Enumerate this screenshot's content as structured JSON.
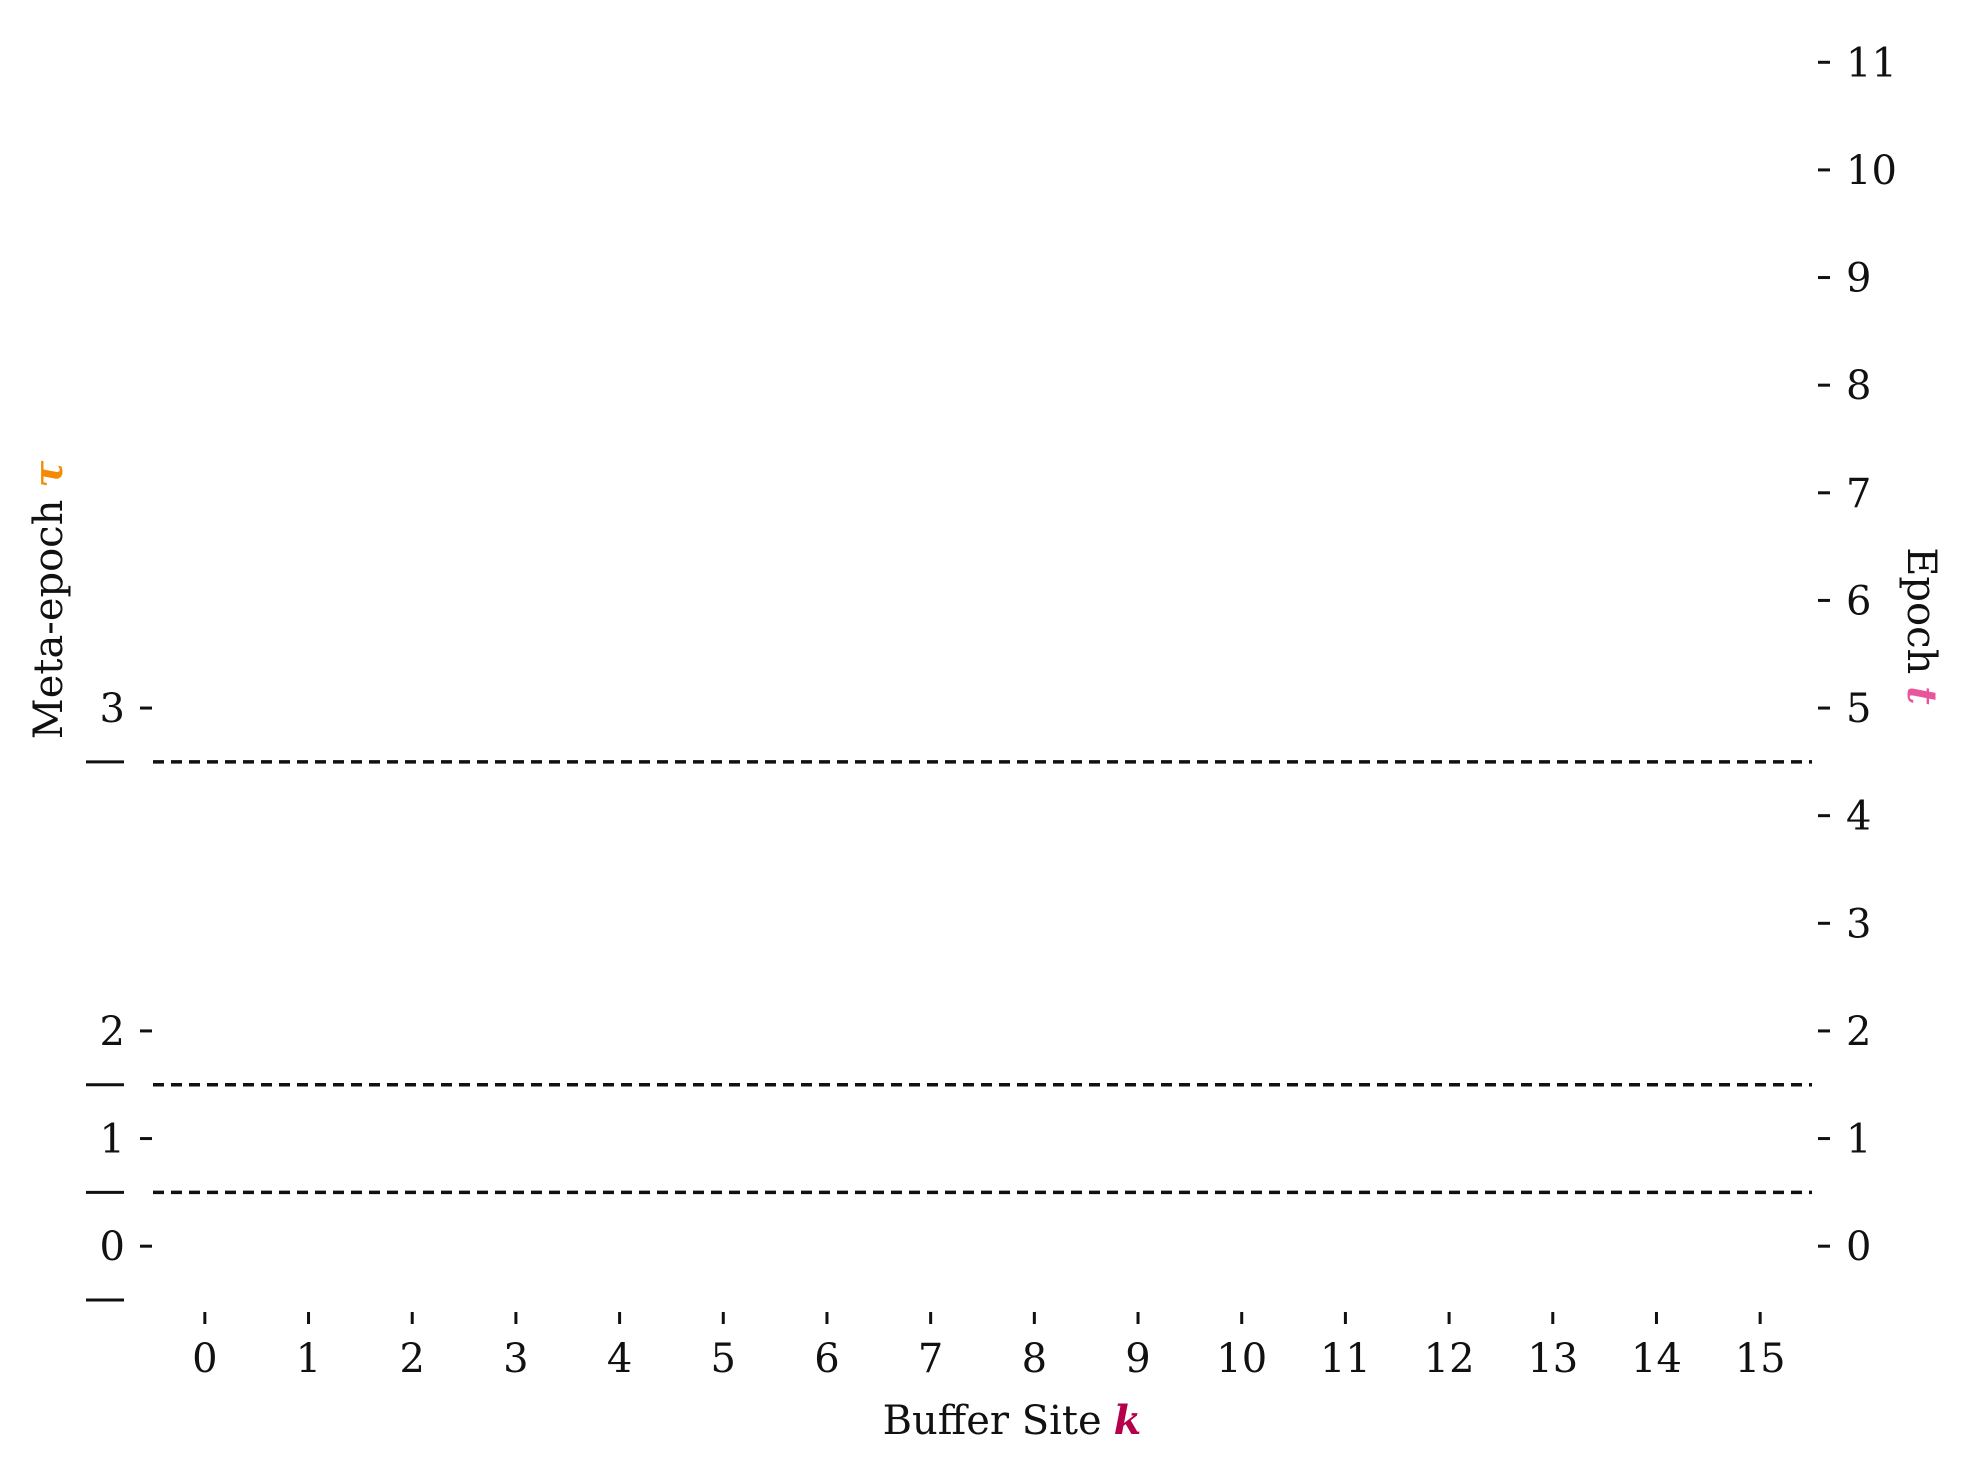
{
  "chart_data": {
    "type": "line",
    "xlabel": "Buffer Site",
    "xlabel_symbol": "k",
    "ylabel_left": "Meta-epoch",
    "ylabel_left_symbol": "τ",
    "ylabel_right": "Epoch",
    "ylabel_right_symbol": "t",
    "x_ticks": [
      "0",
      "1",
      "2",
      "3",
      "4",
      "5",
      "6",
      "7",
      "8",
      "9",
      "10",
      "11",
      "12",
      "13",
      "14",
      "15"
    ],
    "x_tick_values": [
      0,
      1,
      2,
      3,
      4,
      5,
      6,
      7,
      8,
      9,
      10,
      11,
      12,
      13,
      14,
      15
    ],
    "xlim": [
      -0.5,
      15.5
    ],
    "right_y_ticks": [
      "0",
      "1",
      "2",
      "3",
      "4",
      "5",
      "6",
      "7",
      "8",
      "9",
      "10",
      "11"
    ],
    "right_y_tick_values": [
      0,
      1,
      2,
      3,
      4,
      5,
      6,
      7,
      8,
      9,
      10,
      11
    ],
    "ylim": [
      -0.5,
      11.3
    ],
    "left_y_ticks": [
      {
        "label": "0",
        "epoch": 0
      },
      {
        "label": "1",
        "epoch": 1
      },
      {
        "label": "2",
        "epoch": 2
      },
      {
        "label": "3",
        "epoch": 5
      }
    ],
    "left_y_minor_epochs": [
      -0.5,
      0.5,
      1.5,
      4.5
    ],
    "boundaries": [
      {
        "epoch": 0.5
      },
      {
        "epoch": 1.5
      },
      {
        "epoch": 4.5
      }
    ],
    "grid": false,
    "colors": {
      "k_symbol": "#b5004b",
      "tau_symbol": "#f58a07",
      "t_symbol": "#e8559b",
      "lines": "#111111"
    }
  }
}
